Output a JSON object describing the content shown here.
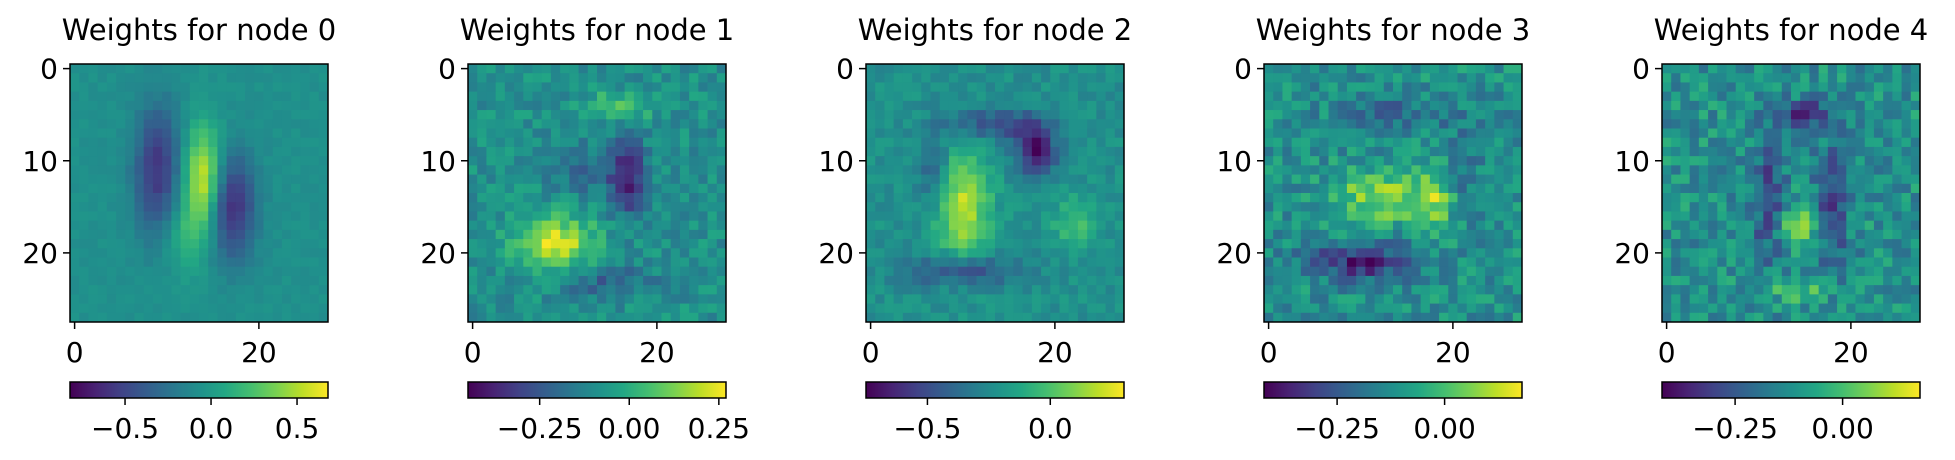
{
  "chart_data": [
    {
      "type": "heatmap",
      "title": "Weights for node 0",
      "grid_shape": [
        28,
        28
      ],
      "xticks": [
        0,
        20
      ],
      "yticks": [
        0,
        10,
        20
      ],
      "colormap": "viridis",
      "colorbar": {
        "range": [
          -0.82,
          0.68
        ],
        "ticks": [
          -0.5,
          0.0,
          0.5
        ],
        "tick_labels": [
          "−0.5",
          "0.0",
          "0.5"
        ]
      },
      "pattern": "vertical dark strokes flanking a bright diagonal stroke near center",
      "blobs": [
        {
          "cx": 14,
          "cy": 12,
          "rx": 1.4,
          "ry": 4.0,
          "amp": 1.0
        },
        {
          "cx": 9,
          "cy": 11,
          "rx": 1.8,
          "ry": 5.0,
          "amp": -0.75
        },
        {
          "cx": 17,
          "cy": 15,
          "rx": 1.8,
          "ry": 4.0,
          "amp": -0.85
        },
        {
          "cx": 12,
          "cy": 18,
          "rx": 1.5,
          "ry": 3.0,
          "amp": 0.35
        }
      ],
      "noise": 0.05
    },
    {
      "type": "heatmap",
      "title": "Weights for node 1",
      "grid_shape": [
        28,
        28
      ],
      "xticks": [
        0,
        20
      ],
      "yticks": [
        0,
        10,
        20
      ],
      "colormap": "viridis",
      "colorbar": {
        "range": [
          -0.45,
          0.27
        ],
        "ticks": [
          -0.25,
          0.0,
          0.25
        ],
        "tick_labels": [
          "−0.25",
          "0.00",
          "0.25"
        ]
      },
      "pattern": "bright blob lower-left, dark ring right",
      "blobs": [
        {
          "cx": 9,
          "cy": 19,
          "rx": 3.0,
          "ry": 2.2,
          "amp": 0.95
        },
        {
          "cx": 16,
          "cy": 4,
          "rx": 2.5,
          "ry": 1.0,
          "amp": 0.55
        },
        {
          "cx": 17,
          "cy": 12,
          "rx": 1.3,
          "ry": 3.0,
          "amp": -0.9
        },
        {
          "cx": 13,
          "cy": 11,
          "rx": 3.0,
          "ry": 2.0,
          "amp": -0.35
        },
        {
          "cx": 14,
          "cy": 23,
          "rx": 4.0,
          "ry": 1.2,
          "amp": -0.4
        }
      ],
      "noise": 0.22
    },
    {
      "type": "heatmap",
      "title": "Weights for node 2",
      "grid_shape": [
        28,
        28
      ],
      "xticks": [
        0,
        20
      ],
      "yticks": [
        0,
        10,
        20
      ],
      "colormap": "viridis",
      "colorbar": {
        "range": [
          -0.75,
          0.3
        ],
        "ticks": [
          -0.5,
          0.0
        ],
        "tick_labels": [
          "−0.5",
          "0.0"
        ]
      },
      "pattern": "dark ring around bright crescent",
      "blobs": [
        {
          "cx": 10,
          "cy": 15,
          "rx": 2.0,
          "ry": 4.5,
          "amp": 0.9
        },
        {
          "cx": 18,
          "cy": 9,
          "rx": 1.5,
          "ry": 1.8,
          "amp": -1.0
        },
        {
          "cx": 14,
          "cy": 6,
          "rx": 4.0,
          "ry": 1.2,
          "amp": -0.6
        },
        {
          "cx": 10,
          "cy": 22,
          "rx": 4.0,
          "ry": 1.2,
          "amp": -0.7
        },
        {
          "cx": 7,
          "cy": 11,
          "rx": 1.2,
          "ry": 3.0,
          "amp": -0.45
        },
        {
          "cx": 22,
          "cy": 17,
          "rx": 1.5,
          "ry": 2.0,
          "amp": 0.45
        }
      ],
      "noise": 0.14
    },
    {
      "type": "heatmap",
      "title": "Weights for node 3",
      "grid_shape": [
        28,
        28
      ],
      "xticks": [
        0,
        20
      ],
      "yticks": [
        0,
        10,
        20
      ],
      "colormap": "viridis",
      "colorbar": {
        "range": [
          -0.42,
          0.18
        ],
        "ticks": [
          -0.25,
          0.0
        ],
        "tick_labels": [
          "−0.25",
          "0.00"
        ]
      },
      "pattern": "bright V shape above dark arc, noisy background",
      "blobs": [
        {
          "cx": 12,
          "cy": 14,
          "rx": 3.5,
          "ry": 2.0,
          "amp": 0.75
        },
        {
          "cx": 18,
          "cy": 14,
          "rx": 1.5,
          "ry": 2.5,
          "amp": 0.6
        },
        {
          "cx": 10,
          "cy": 21,
          "rx": 4.0,
          "ry": 1.3,
          "amp": -0.9
        },
        {
          "cx": 14,
          "cy": 5,
          "rx": 4.0,
          "ry": 1.2,
          "amp": -0.4
        },
        {
          "cx": 21,
          "cy": 11,
          "rx": 1.2,
          "ry": 3.0,
          "amp": -0.35
        }
      ],
      "noise": 0.3
    },
    {
      "type": "heatmap",
      "title": "Weights for node 4",
      "grid_shape": [
        28,
        28
      ],
      "xticks": [
        0,
        20
      ],
      "yticks": [
        0,
        10,
        20
      ],
      "colormap": "viridis",
      "colorbar": {
        "range": [
          -0.42,
          0.18
        ],
        "ticks": [
          -0.25,
          0.0
        ],
        "tick_labels": [
          "−0.25",
          "0.00"
        ]
      },
      "pattern": "dark vertical loop with bright center spot, noisy background",
      "blobs": [
        {
          "cx": 15,
          "cy": 5,
          "rx": 2.0,
          "ry": 1.0,
          "amp": -1.0
        },
        {
          "cx": 14,
          "cy": 17,
          "rx": 1.2,
          "ry": 1.5,
          "amp": 0.8
        },
        {
          "cx": 11,
          "cy": 14,
          "rx": 1.3,
          "ry": 5.0,
          "amp": -0.6
        },
        {
          "cx": 18,
          "cy": 15,
          "rx": 1.3,
          "ry": 5.0,
          "amp": -0.55
        },
        {
          "cx": 14,
          "cy": 24,
          "rx": 3.0,
          "ry": 1.0,
          "amp": 0.4
        }
      ],
      "noise": 0.32
    }
  ]
}
